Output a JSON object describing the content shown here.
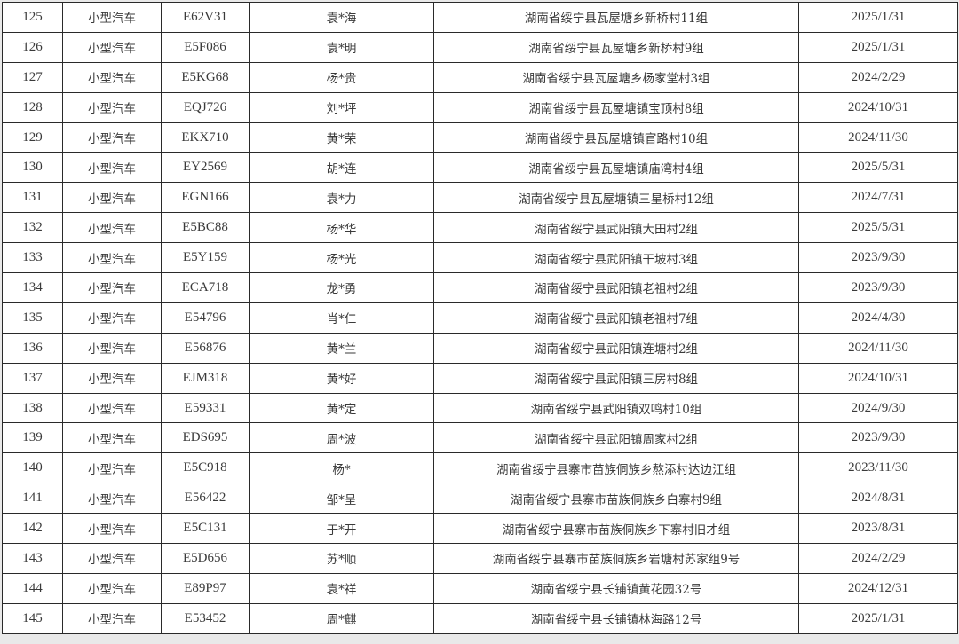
{
  "table": {
    "rows": [
      [
        "125",
        "小型汽车",
        "E62V31",
        "袁*海",
        "湖南省绥宁县瓦屋塘乡新桥村11组",
        "2025/1/31"
      ],
      [
        "126",
        "小型汽车",
        "E5F086",
        "袁*明",
        "湖南省绥宁县瓦屋塘乡新桥村9组",
        "2025/1/31"
      ],
      [
        "127",
        "小型汽车",
        "E5KG68",
        "杨*贵",
        "湖南省绥宁县瓦屋塘乡杨家堂村3组",
        "2024/2/29"
      ],
      [
        "128",
        "小型汽车",
        "EQJ726",
        "刘*坪",
        "湖南省绥宁县瓦屋塘镇宝顶村8组",
        "2024/10/31"
      ],
      [
        "129",
        "小型汽车",
        "EKX710",
        "黄*荣",
        "湖南省绥宁县瓦屋塘镇官路村10组",
        "2024/11/30"
      ],
      [
        "130",
        "小型汽车",
        "EY2569",
        "胡*连",
        "湖南省绥宁县瓦屋塘镇庙湾村4组",
        "2025/5/31"
      ],
      [
        "131",
        "小型汽车",
        "EGN166",
        "袁*力",
        "湖南省绥宁县瓦屋塘镇三星桥村12组",
        "2024/7/31"
      ],
      [
        "132",
        "小型汽车",
        "E5BC88",
        "杨*华",
        "湖南省绥宁县武阳镇大田村2组",
        "2025/5/31"
      ],
      [
        "133",
        "小型汽车",
        "E5Y159",
        "杨*光",
        "湖南省绥宁县武阳镇干坡村3组",
        "2023/9/30"
      ],
      [
        "134",
        "小型汽车",
        "ECA718",
        "龙*勇",
        "湖南省绥宁县武阳镇老祖村2组",
        "2023/9/30"
      ],
      [
        "135",
        "小型汽车",
        "E54796",
        "肖*仁",
        "湖南省绥宁县武阳镇老祖村7组",
        "2024/4/30"
      ],
      [
        "136",
        "小型汽车",
        "E56876",
        "黄*兰",
        "湖南省绥宁县武阳镇连塘村2组",
        "2024/11/30"
      ],
      [
        "137",
        "小型汽车",
        "EJM318",
        "黄*好",
        "湖南省绥宁县武阳镇三房村8组",
        "2024/10/31"
      ],
      [
        "138",
        "小型汽车",
        "E59331",
        "黄*定",
        "湖南省绥宁县武阳镇双鸣村10组",
        "2024/9/30"
      ],
      [
        "139",
        "小型汽车",
        "EDS695",
        "周*波",
        "湖南省绥宁县武阳镇周家村2组",
        "2023/9/30"
      ],
      [
        "140",
        "小型汽车",
        "E5C918",
        "杨*",
        "湖南省绥宁县寨市苗族侗族乡熬添村达边江组",
        "2023/11/30"
      ],
      [
        "141",
        "小型汽车",
        "E56422",
        "邹*呈",
        "湖南省绥宁县寨市苗族侗族乡白寨村9组",
        "2024/8/31"
      ],
      [
        "142",
        "小型汽车",
        "E5C131",
        "于*开",
        "湖南省绥宁县寨市苗族侗族乡下寨村旧才组",
        "2023/8/31"
      ],
      [
        "143",
        "小型汽车",
        "E5D656",
        "苏*顺",
        "湖南省绥宁县寨市苗族侗族乡岩塘村苏家组9号",
        "2024/2/29"
      ],
      [
        "144",
        "小型汽车",
        "E89P97",
        "袁*祥",
        "湖南省绥宁县长铺镇黄花园32号",
        "2024/12/31"
      ],
      [
        "145",
        "小型汽车",
        "E53452",
        "周*麒",
        "湖南省绥宁县长铺镇林海路12号",
        "2025/1/31"
      ]
    ]
  }
}
